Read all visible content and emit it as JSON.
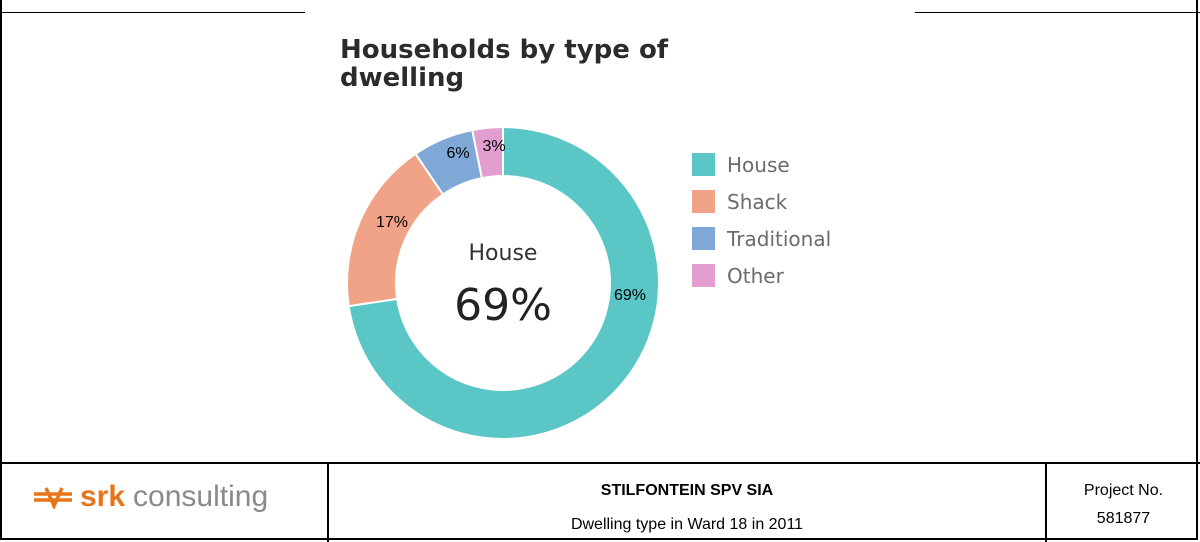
{
  "chart_data": {
    "type": "pie",
    "title": "Households by type of dwelling",
    "categories": [
      "House",
      "Shack",
      "Traditional",
      "Other"
    ],
    "values": [
      69,
      17,
      6,
      3
    ],
    "data_labels": [
      "69%",
      "17%",
      "6%",
      "3%"
    ],
    "colors": [
      "#5bc6c6",
      "#f0a386",
      "#7fa8d6",
      "#e39ed0"
    ],
    "legend_position": "right",
    "center_label": "House",
    "center_value": "69%",
    "donut": true
  },
  "footer": {
    "logo_brand": "srk",
    "logo_word": "consulting",
    "project_name": "STILFONTEIN SPV SIA",
    "figure_caption": "Dwelling type in Ward 18 in 2011",
    "project_label": "Project No.",
    "project_number": "581877"
  },
  "logo_color": "#e8751a"
}
